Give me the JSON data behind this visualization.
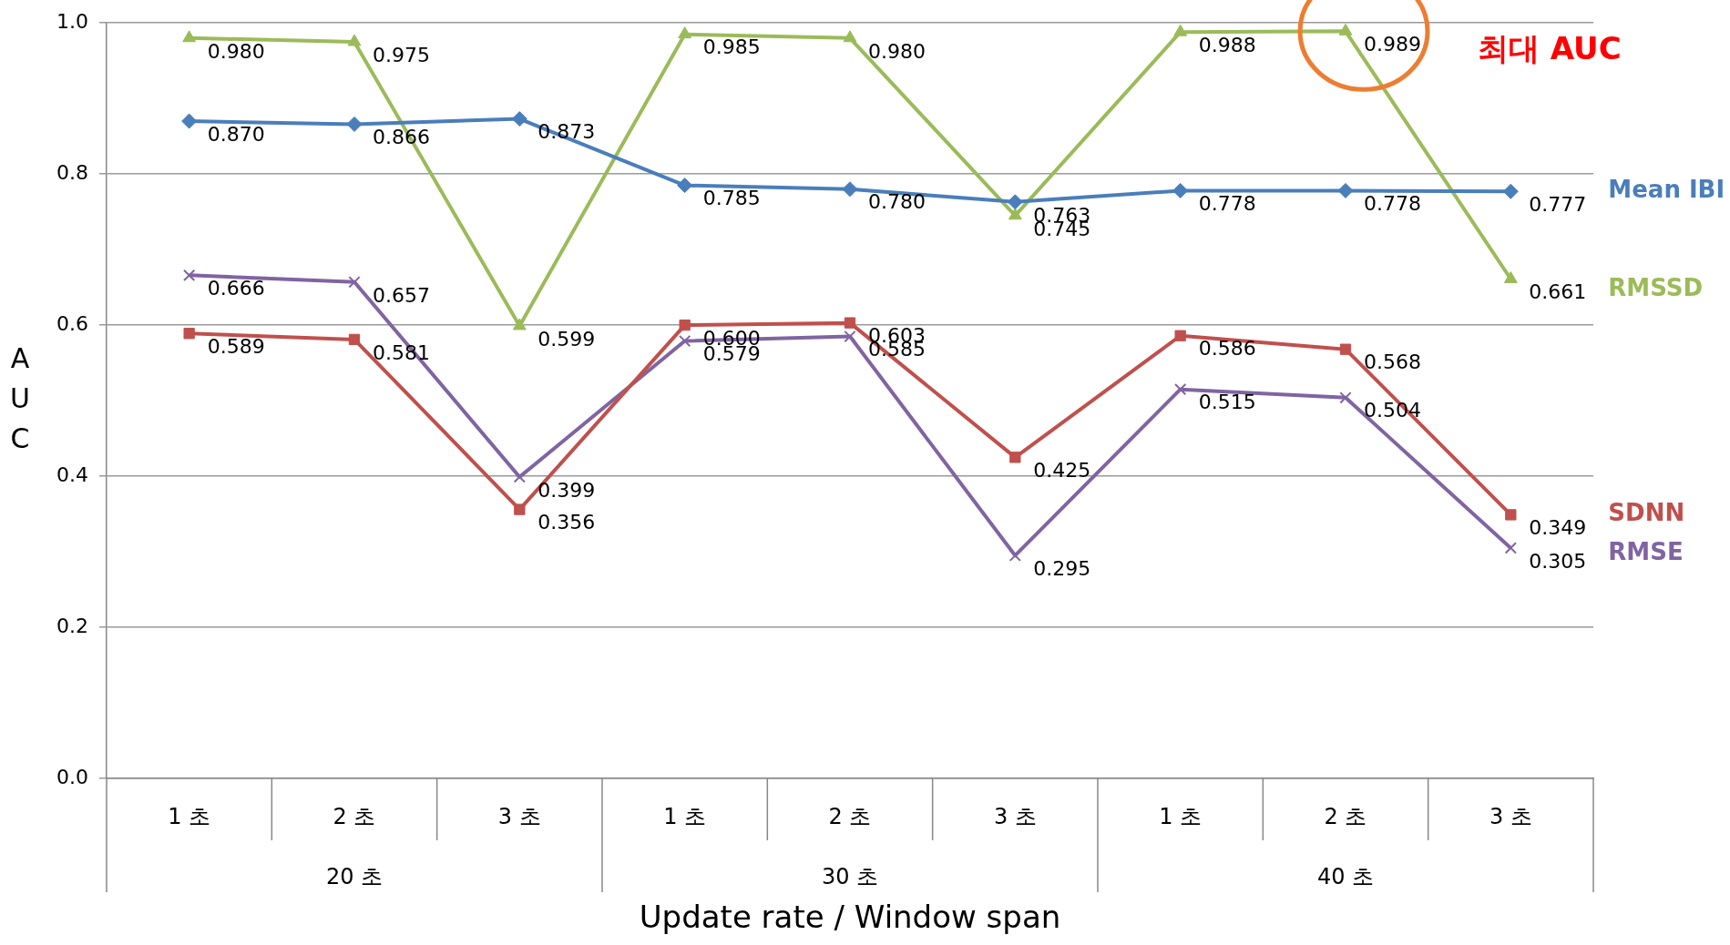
{
  "chart_data": {
    "type": "line",
    "xlabel": "Update rate / Window span",
    "ylabel": "AUC",
    "categories": [
      "1 초",
      "2 초",
      "3 초",
      "1 초",
      "2 초",
      "3 초",
      "1 초",
      "2 초",
      "3 초"
    ],
    "series": [
      {
        "name": "Mean IBI",
        "color": "#4a7ebb",
        "marker": "diamond",
        "values": [
          0.87,
          0.866,
          0.873,
          0.785,
          0.78,
          0.763,
          0.778,
          0.778,
          0.777
        ],
        "value_labels": [
          "0.870",
          "0.866",
          "0.873",
          "0.785",
          "0.780",
          "0.763",
          "0.778",
          "0.778",
          "0.777"
        ]
      },
      {
        "name": "RMSSD",
        "color": "#9bbb59",
        "marker": "triangle",
        "values": [
          0.98,
          0.975,
          0.599,
          0.985,
          0.98,
          0.745,
          0.988,
          0.989,
          0.661
        ],
        "value_labels": [
          "0.980",
          "0.975",
          "0.599",
          "0.985",
          "0.980",
          "0.745",
          "0.988",
          "0.989",
          "0.661"
        ]
      },
      {
        "name": "SDNN",
        "color": "#c0504d",
        "marker": "square",
        "values": [
          0.589,
          0.581,
          0.356,
          0.6,
          0.603,
          0.425,
          0.586,
          0.568,
          0.349
        ],
        "value_labels": [
          "0.589",
          "0.581",
          "0.356",
          "0.600",
          "0.603",
          "0.425",
          "0.586",
          "0.568",
          "0.349"
        ]
      },
      {
        "name": "RMSE",
        "color": "#8064a2",
        "marker": "cross",
        "values": [
          0.666,
          0.657,
          0.399,
          0.579,
          0.585,
          0.295,
          0.515,
          0.504,
          0.305
        ],
        "value_labels": [
          "0.666",
          "0.657",
          "0.399",
          "0.579",
          "0.585",
          "0.295",
          "0.515",
          "0.504",
          "0.305"
        ]
      }
    ],
    "ylim": [
      0,
      1
    ],
    "yticks": [
      {
        "value": 0,
        "label": "0.0"
      },
      {
        "value": 0.2,
        "label": "0.2"
      },
      {
        "value": 0.4,
        "label": "0.4"
      },
      {
        "value": 0.6,
        "label": "0.6"
      },
      {
        "value": 0.8,
        "label": "0.8"
      },
      {
        "value": 1,
        "label": "1.0"
      }
    ],
    "grid": "y",
    "legend": false,
    "annotations": [
      "20 초",
      "30 초",
      "40 초",
      "최대 AUC"
    ]
  }
}
